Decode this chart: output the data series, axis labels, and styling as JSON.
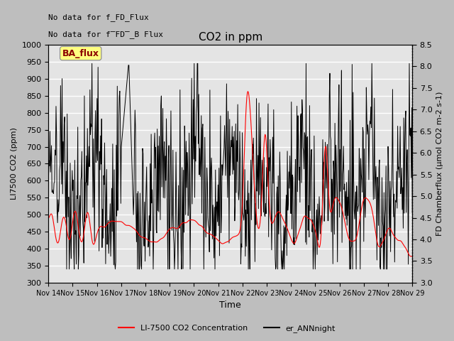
{
  "title": "CO2 in ppm",
  "ylabel_left": "LI7500 CO2 (ppm)",
  "ylabel_right": "FD Chamberflux (μmol CO2 m-2 s-1)",
  "xlabel": "Time",
  "ylim_left": [
    300,
    1000
  ],
  "ylim_right": [
    3.0,
    8.5
  ],
  "xtick_labels": [
    "Nov 14",
    "Nov 15",
    "Nov 16",
    "Nov 17",
    "Nov 18",
    "Nov 19",
    "Nov 20",
    "Nov 21",
    "Nov 22",
    "Nov 23",
    "Nov 24",
    "Nov 25",
    "Nov 26",
    "Nov 27",
    "Nov 28",
    "Nov 29"
  ],
  "no_data_text1": "No data for f_FD_Flux",
  "no_data_text2": "No data for f̅FD̅_B Flux",
  "ba_flux_label": "BA_flux",
  "legend_red_label": "LI-7500 CO2 Concentration",
  "legend_black_label": "er_ANNnight",
  "line_red_color": "#FF0000",
  "line_black_color": "#000000",
  "fig_bg_color": "#C8C8C8",
  "plot_bg_color": "#E8E8E8",
  "grid_color": "#FFFFFF",
  "seed": 42
}
